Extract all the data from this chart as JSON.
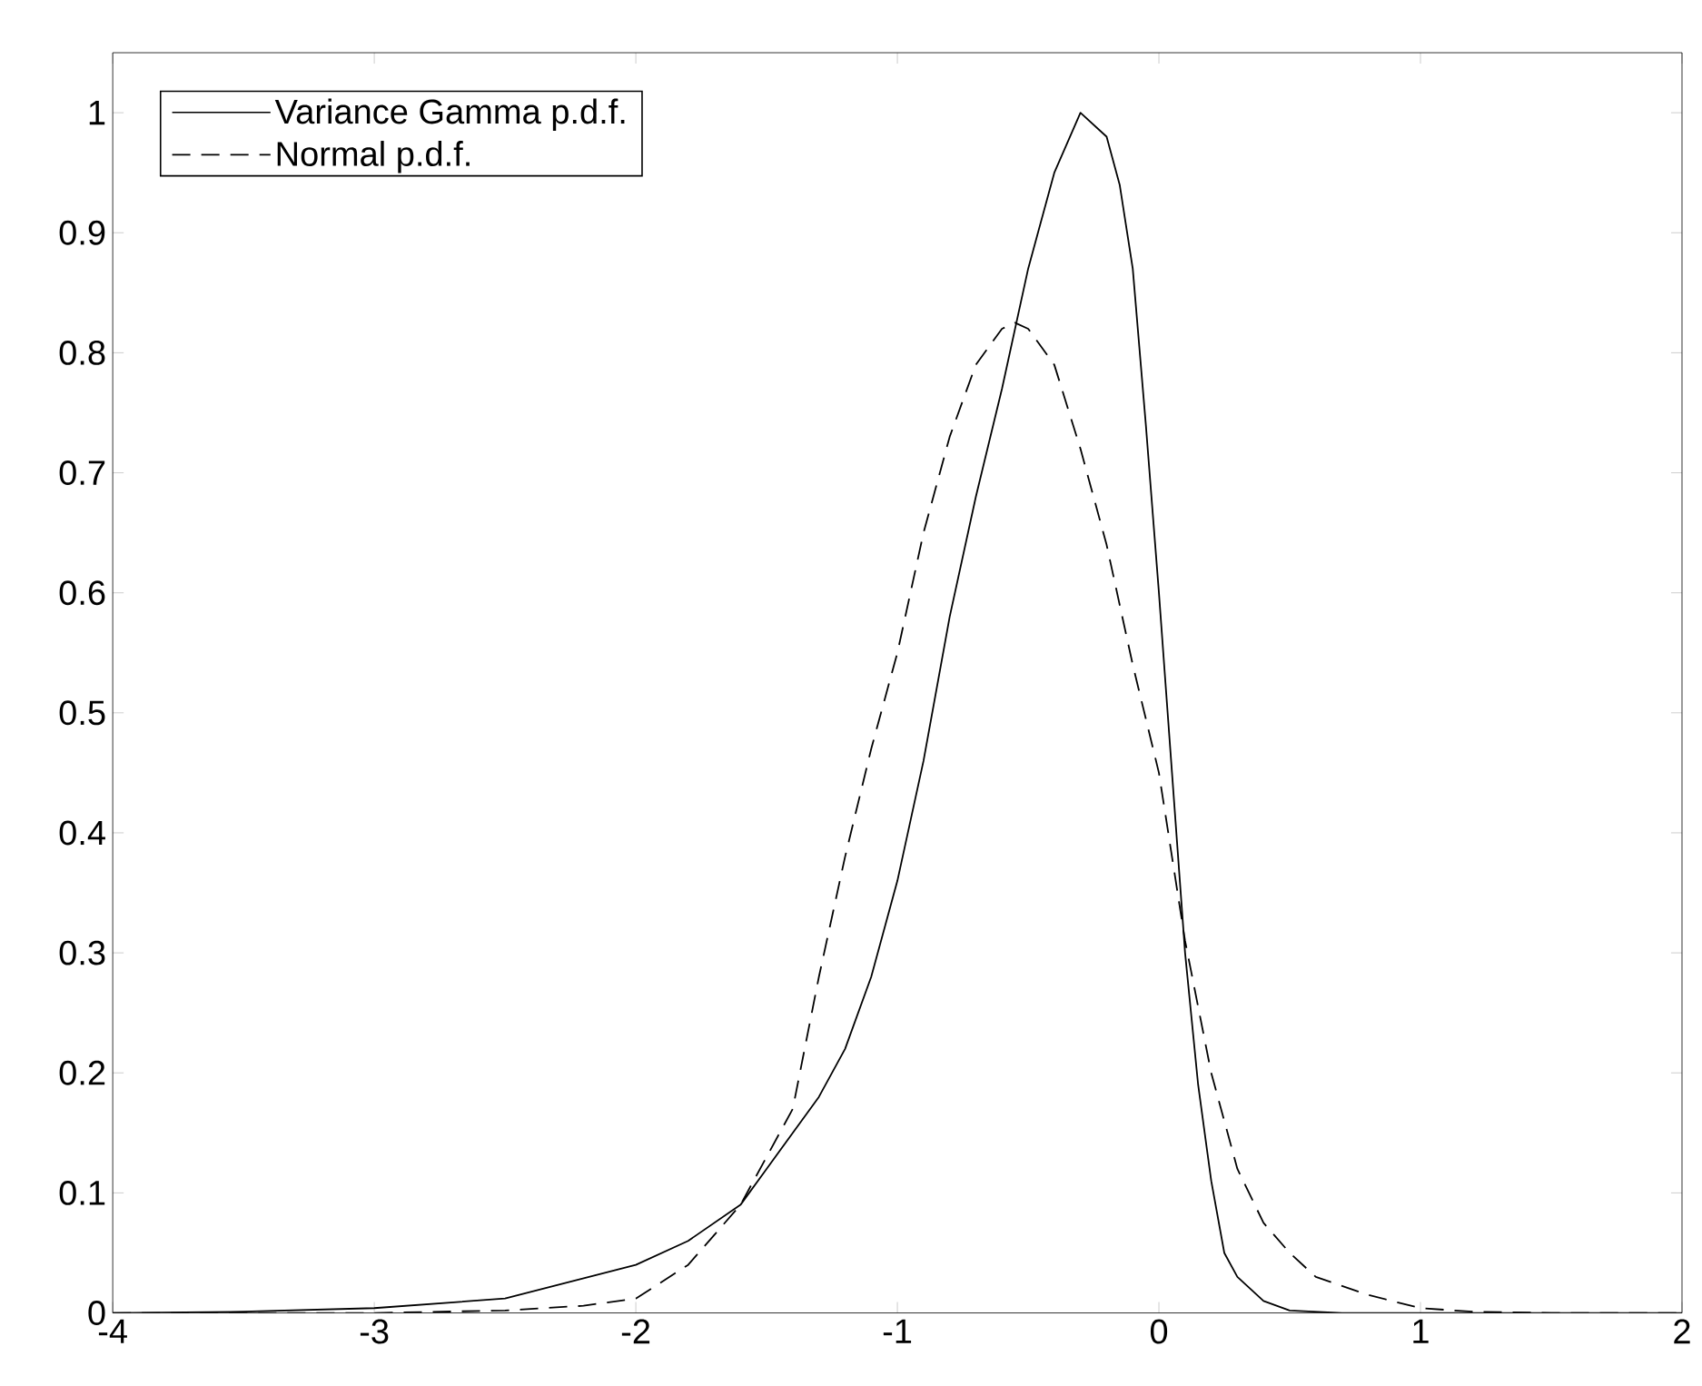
{
  "chart_data": {
    "type": "line",
    "xlim": [
      -4,
      2
    ],
    "ylim": [
      0,
      1.05
    ],
    "xticks": [
      -4,
      -3,
      -2,
      -1,
      0,
      1,
      2
    ],
    "yticks": [
      0,
      0.1,
      0.2,
      0.3,
      0.4,
      0.5,
      0.6,
      0.7,
      0.8,
      0.9,
      1
    ],
    "grid": false,
    "legend": "top left",
    "marker": "none",
    "series": [
      {
        "name": "Variance Gamma p.d.f.",
        "color": "#000000",
        "line_style": "solid",
        "x": [
          -4,
          -3.5,
          -3,
          -2.5,
          -2,
          -1.8,
          -1.6,
          -1.5,
          -1.4,
          -1.3,
          -1.2,
          -1.1,
          -1,
          -0.9,
          -0.8,
          -0.7,
          -0.6,
          -0.5,
          -0.4,
          -0.3,
          -0.2,
          -0.15,
          -0.1,
          -0.05,
          0,
          0.05,
          0.1,
          0.15,
          0.2,
          0.25,
          0.3,
          0.4,
          0.5,
          0.7,
          1,
          2
        ],
        "values": [
          0,
          0.001,
          0.004,
          0.012,
          0.04,
          0.06,
          0.09,
          0.12,
          0.15,
          0.18,
          0.22,
          0.28,
          0.36,
          0.46,
          0.58,
          0.68,
          0.77,
          0.87,
          0.95,
          1.0,
          0.98,
          0.94,
          0.87,
          0.74,
          0.6,
          0.45,
          0.3,
          0.19,
          0.11,
          0.05,
          0.03,
          0.01,
          0.002,
          0,
          0,
          0
        ]
      },
      {
        "name": "Normal p.d.f.",
        "color": "#000000",
        "line_style": "dashed",
        "x": [
          -4,
          -3,
          -2.5,
          -2.2,
          -2,
          -1.8,
          -1.6,
          -1.4,
          -1.3,
          -1.2,
          -1.1,
          -1,
          -0.9,
          -0.8,
          -0.7,
          -0.6,
          -0.55,
          -0.5,
          -0.4,
          -0.3,
          -0.2,
          -0.1,
          0,
          0.1,
          0.2,
          0.3,
          0.4,
          0.5,
          0.6,
          0.8,
          1,
          1.2,
          1.5,
          2
        ],
        "values": [
          0,
          0,
          0.002,
          0.006,
          0.012,
          0.04,
          0.09,
          0.17,
          0.28,
          0.38,
          0.47,
          0.55,
          0.65,
          0.73,
          0.79,
          0.82,
          0.825,
          0.82,
          0.79,
          0.72,
          0.64,
          0.54,
          0.45,
          0.31,
          0.2,
          0.12,
          0.075,
          0.05,
          0.03,
          0.015,
          0.004,
          0.001,
          0,
          0
        ]
      }
    ]
  }
}
